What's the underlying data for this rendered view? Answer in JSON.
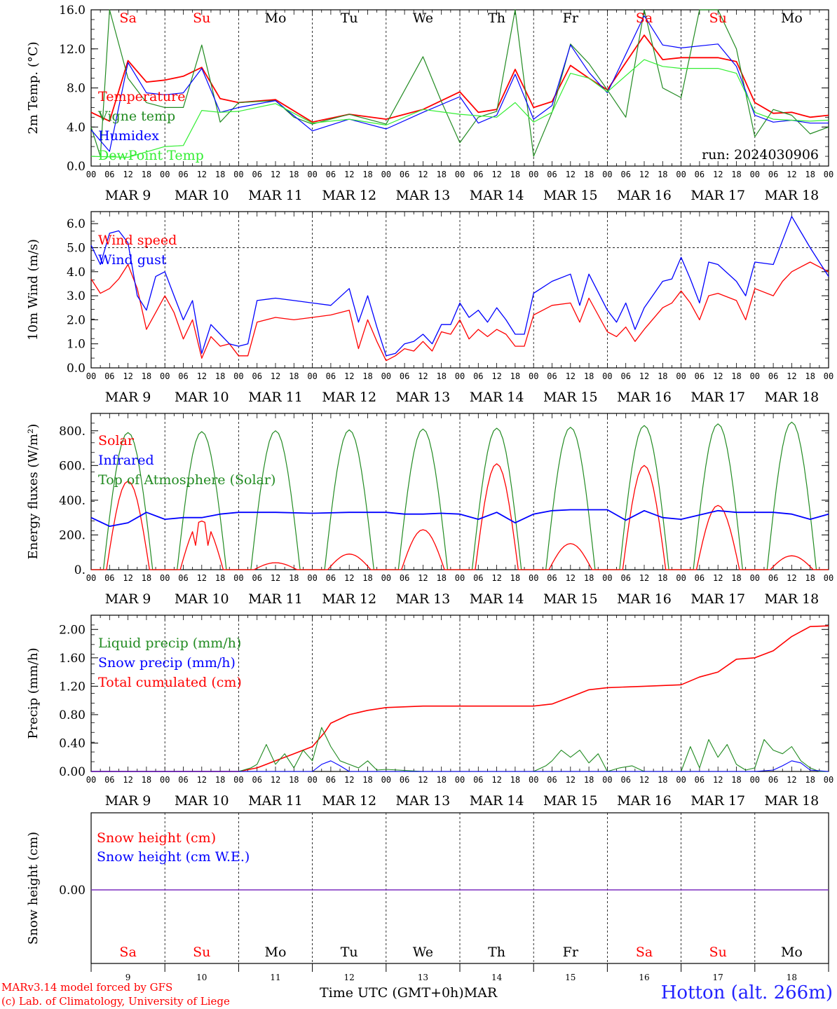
{
  "run_label": "run: 2024030906",
  "day_names": [
    "Sa",
    "Su",
    "Mo",
    "Tu",
    "We",
    "Th",
    "Fr",
    "Sa",
    "Su",
    "Mo"
  ],
  "date_labels": [
    "MAR  9",
    "MAR 10",
    "MAR 11",
    "MAR 12",
    "MAR 13",
    "MAR 14",
    "MAR 15",
    "MAR 16",
    "MAR 17",
    "MAR 18"
  ],
  "day_numbers": [
    "9",
    "10",
    "11",
    "12",
    "13",
    "14",
    "15",
    "16",
    "17",
    "18"
  ],
  "hour_ticks": [
    "00",
    "06",
    "12",
    "18"
  ],
  "weekend_indices": [
    0,
    1,
    7,
    8
  ],
  "x_axis_title": "Time UTC (GMT+0h)",
  "x_axis_month": "MAR",
  "model_credit": "MARv3.14 model forced by GFS",
  "lab_credit": "(c) Lab. of Climatology, University of Liege",
  "station": "Hotton (alt. 266m)",
  "colors": {
    "red": "#ff0000",
    "green": "#228b22",
    "blue": "#0000ff",
    "lightgreen": "#33ee33",
    "purple": "#7b2fbf"
  },
  "chart_data": [
    {
      "type": "line",
      "ylabel": "2m Temp. (°C)",
      "ylim": [
        0,
        16
      ],
      "yticks": [
        "0.0",
        "4.0",
        "8.0",
        "12.0",
        "16.0"
      ],
      "x_unit": "hours since MAR 9 00 UTC",
      "legend": [
        "Temperature",
        "Vigne temp",
        "Humidex",
        "DewPoint Temp"
      ],
      "series": [
        {
          "name": "Temperature",
          "color": "red",
          "x": [
            0,
            6,
            12,
            18,
            24,
            30,
            36,
            42,
            48,
            60,
            72,
            84,
            96,
            108,
            120,
            126,
            132,
            138,
            144,
            150,
            156,
            162,
            168,
            180,
            186,
            192,
            204,
            210,
            216,
            222,
            228,
            234,
            240
          ],
          "values": [
            5.5,
            4.6,
            10.8,
            8.6,
            8.8,
            9.2,
            10.1,
            6.9,
            6.5,
            6.8,
            4.5,
            5.3,
            4.8,
            5.8,
            7.6,
            5.5,
            5.8,
            9.9,
            6.0,
            6.6,
            10.3,
            9.0,
            7.8,
            13.4,
            10.9,
            11.1,
            11.1,
            10.7,
            6.5,
            5.4,
            5.5,
            5.0,
            5.2
          ]
        },
        {
          "name": "Vigne temp",
          "color": "green",
          "x": [
            0,
            3,
            6,
            12,
            18,
            24,
            30,
            36,
            42,
            48,
            60,
            66,
            72,
            84,
            96,
            108,
            114,
            120,
            126,
            132,
            138,
            144,
            150,
            156,
            162,
            168,
            174,
            180,
            186,
            192,
            198,
            204,
            210,
            216,
            222,
            228,
            234,
            240
          ],
          "values": [
            4,
            1,
            16,
            9,
            6.5,
            6,
            6,
            12.4,
            4.5,
            6.5,
            6.7,
            5,
            4.3,
            5.3,
            4.3,
            11.2,
            6.6,
            2.4,
            5,
            5.6,
            16,
            1,
            5.5,
            12.5,
            10.5,
            7.8,
            5,
            16,
            8,
            7,
            16,
            16,
            12,
            3,
            5.8,
            5.2,
            3.3,
            4
          ]
        },
        {
          "name": "Humidex",
          "color": "blue",
          "x": [
            0,
            6,
            12,
            18,
            24,
            30,
            36,
            42,
            48,
            60,
            72,
            84,
            96,
            108,
            120,
            126,
            132,
            138,
            144,
            150,
            156,
            162,
            168,
            180,
            186,
            192,
            204,
            210,
            216,
            222,
            228,
            234,
            240
          ],
          "values": [
            3.7,
            1.5,
            10.6,
            7.5,
            7.3,
            7.5,
            10,
            5.5,
            6,
            6.7,
            3.6,
            4.8,
            3.8,
            5.5,
            7.1,
            4.4,
            5.2,
            9.4,
            4.8,
            6.2,
            12.4,
            9.6,
            7.5,
            15.4,
            12.4,
            12.1,
            12.5,
            10.2,
            5.2,
            4.5,
            4.7,
            4.4,
            4.4
          ]
        },
        {
          "name": "DewPoint Temp",
          "color": "lightgreen",
          "x": [
            0,
            12,
            24,
            30,
            36,
            42,
            48,
            60,
            72,
            84,
            96,
            108,
            120,
            132,
            138,
            144,
            150,
            156,
            162,
            168,
            180,
            186,
            192,
            204,
            210,
            216,
            222,
            228,
            234,
            240
          ],
          "values": [
            1,
            0.9,
            2,
            2.1,
            5.7,
            5.5,
            5.6,
            6.4,
            4.4,
            4.8,
            4.2,
            5.8,
            5.3,
            5,
            6.5,
            4.5,
            5.5,
            9.5,
            9,
            7.6,
            10.9,
            10.2,
            10,
            10,
            9.5,
            5.5,
            4.8,
            4.7,
            4.6,
            4.7
          ]
        }
      ]
    },
    {
      "type": "line",
      "ylabel": "10m Wind (m/s)",
      "ylim": [
        0,
        6.5
      ],
      "yticks": [
        "0.0",
        "1.0",
        "2.0",
        "3.0",
        "4.0",
        "5.0",
        "6.0"
      ],
      "reference_line": 5.0,
      "x_unit": "hours since MAR 9 00 UTC",
      "legend": [
        "Wind speed",
        "Wind gust"
      ],
      "series": [
        {
          "name": "Wind speed",
          "color": "red",
          "x": [
            0,
            3,
            6,
            9,
            12,
            15,
            18,
            21,
            24,
            27,
            30,
            33,
            36,
            39,
            42,
            45,
            48,
            51,
            54,
            60,
            66,
            72,
            78,
            84,
            87,
            90,
            93,
            96,
            99,
            102,
            105,
            108,
            111,
            114,
            117,
            120,
            123,
            126,
            129,
            132,
            135,
            138,
            141,
            144,
            150,
            156,
            159,
            162,
            168,
            171,
            174,
            177,
            180,
            186,
            189,
            192,
            195,
            198,
            201,
            204,
            210,
            213,
            216,
            222,
            225,
            228,
            234,
            240
          ],
          "values": [
            3.7,
            3.1,
            3.3,
            3.7,
            4.3,
            3.3,
            1.6,
            2.3,
            3.0,
            2.3,
            1.2,
            2.0,
            0.4,
            1.3,
            0.9,
            1.0,
            0.5,
            0.5,
            1.9,
            2.1,
            2.0,
            2.1,
            2.2,
            2.4,
            0.8,
            2.0,
            1.1,
            0.3,
            0.5,
            0.8,
            0.7,
            1.1,
            0.7,
            1.5,
            1.4,
            2.0,
            1.2,
            1.6,
            1.3,
            1.6,
            1.4,
            0.9,
            0.9,
            2.2,
            2.6,
            2.7,
            1.9,
            2.9,
            1.5,
            1.3,
            1.7,
            1.1,
            1.6,
            2.5,
            2.7,
            3.2,
            2.7,
            2.0,
            3.0,
            3.1,
            2.8,
            2.0,
            3.3,
            3.0,
            3.6,
            4.0,
            4.4,
            4.0
          ]
        },
        {
          "name": "Wind gust",
          "color": "blue",
          "x": [
            0,
            3,
            6,
            9,
            12,
            15,
            18,
            21,
            24,
            27,
            30,
            33,
            36,
            39,
            42,
            45,
            48,
            51,
            54,
            60,
            66,
            72,
            78,
            84,
            87,
            90,
            93,
            96,
            99,
            102,
            105,
            108,
            111,
            114,
            117,
            120,
            123,
            126,
            129,
            132,
            135,
            138,
            141,
            144,
            150,
            156,
            159,
            162,
            168,
            171,
            174,
            177,
            180,
            186,
            189,
            192,
            195,
            198,
            201,
            204,
            210,
            213,
            216,
            222,
            225,
            228,
            234,
            240
          ],
          "values": [
            5.1,
            4.3,
            5.6,
            5.7,
            5.2,
            3.0,
            2.4,
            3.8,
            4.0,
            3.0,
            2.0,
            2.8,
            0.6,
            1.8,
            1.4,
            1.0,
            0.9,
            1.0,
            2.8,
            2.9,
            2.8,
            2.7,
            2.6,
            3.3,
            1.9,
            3.0,
            1.7,
            0.5,
            0.6,
            1.0,
            1.1,
            1.4,
            1.0,
            1.8,
            1.8,
            2.7,
            2.1,
            2.4,
            1.9,
            2.5,
            2.0,
            1.4,
            1.4,
            3.1,
            3.6,
            3.9,
            2.6,
            3.9,
            2.4,
            1.9,
            2.7,
            1.6,
            2.5,
            3.6,
            3.7,
            4.6,
            3.7,
            2.7,
            4.4,
            4.3,
            3.6,
            3.0,
            4.4,
            4.3,
            5.3,
            6.3,
            5.0,
            3.8
          ]
        }
      ]
    },
    {
      "type": "line",
      "ylabel": "Energy fluxes (W/m²)",
      "ylim": [
        0,
        900
      ],
      "yticks": [
        "0.",
        "200.",
        "400.",
        "600.",
        "800."
      ],
      "x_unit": "hours since MAR 9 00 UTC",
      "legend": [
        "Solar",
        "Infrared",
        "Top of Atmosphere (Solar)"
      ],
      "toa_peaks": [
        790,
        795,
        800,
        805,
        810,
        815,
        820,
        830,
        840,
        850
      ],
      "solar_peaks": [
        510,
        280,
        40,
        90,
        230,
        610,
        150,
        600,
        370,
        80
      ],
      "series": [
        {
          "name": "Infrared",
          "color": "blue",
          "x": [
            0,
            6,
            12,
            18,
            24,
            30,
            36,
            42,
            48,
            60,
            72,
            84,
            96,
            102,
            108,
            114,
            120,
            126,
            132,
            138,
            144,
            150,
            156,
            168,
            174,
            180,
            186,
            192,
            204,
            210,
            216,
            222,
            228,
            234,
            240
          ],
          "values": [
            300,
            250,
            270,
            330,
            290,
            300,
            300,
            320,
            330,
            330,
            325,
            330,
            330,
            320,
            320,
            325,
            320,
            290,
            330,
            270,
            320,
            340,
            345,
            345,
            285,
            340,
            300,
            290,
            340,
            330,
            330,
            330,
            320,
            290,
            320
          ]
        }
      ]
    },
    {
      "type": "line",
      "ylabel": "Precip (mm/h)",
      "ylim": [
        0,
        2.2
      ],
      "yticks": [
        "0.00",
        "0.40",
        "0.80",
        "1.20",
        "1.60",
        "2.00"
      ],
      "x_unit": "hours since MAR 9 00 UTC",
      "legend": [
        "Liquid precip (mm/h)",
        "Snow precip (mm/h)",
        "Total cumulated (cm)"
      ],
      "series": [
        {
          "name": "Total cumulated (cm)",
          "color": "red",
          "x": [
            0,
            48,
            54,
            60,
            66,
            72,
            76,
            78,
            84,
            90,
            96,
            108,
            120,
            132,
            144,
            150,
            156,
            162,
            168,
            180,
            192,
            198,
            204,
            210,
            216,
            222,
            228,
            234,
            240
          ],
          "values": [
            0,
            0,
            0.05,
            0.15,
            0.25,
            0.35,
            0.55,
            0.68,
            0.8,
            0.86,
            0.9,
            0.92,
            0.92,
            0.92,
            0.92,
            0.95,
            1.05,
            1.15,
            1.18,
            1.2,
            1.22,
            1.33,
            1.4,
            1.58,
            1.6,
            1.7,
            1.9,
            2.04,
            2.05
          ]
        },
        {
          "name": "Liquid precip (mm/h)",
          "color": "green",
          "x": [
            0,
            48,
            52,
            54,
            57,
            60,
            63,
            66,
            69,
            72,
            75,
            78,
            81,
            84,
            87,
            90,
            93,
            96,
            100,
            108,
            120,
            144,
            148,
            150,
            153,
            156,
            159,
            162,
            165,
            168,
            172,
            176,
            180,
            192,
            195,
            198,
            201,
            204,
            207,
            210,
            213,
            216,
            219,
            222,
            225,
            228,
            231,
            234,
            237,
            240
          ],
          "values": [
            0,
            0,
            0.05,
            0.1,
            0.38,
            0.1,
            0.25,
            0.05,
            0.3,
            0.15,
            0.62,
            0.35,
            0.15,
            0.1,
            0.05,
            0.15,
            0.02,
            0.03,
            0.02,
            0,
            0,
            0,
            0.08,
            0.15,
            0.3,
            0.2,
            0.3,
            0.12,
            0.25,
            0,
            0.05,
            0.08,
            0,
            0,
            0.35,
            0.05,
            0.45,
            0.2,
            0.38,
            0.1,
            0.02,
            0.05,
            0.45,
            0.3,
            0.25,
            0.35,
            0.15,
            0.05,
            0,
            0
          ]
        },
        {
          "name": "Snow precip (mm/h)",
          "color": "blue",
          "x": [
            0,
            72,
            75,
            78,
            81,
            84,
            216,
            222,
            225,
            228,
            231,
            234,
            240
          ],
          "values": [
            0,
            0,
            0.1,
            0.15,
            0.08,
            0,
            0,
            0.02,
            0.08,
            0.15,
            0.12,
            0.02,
            0
          ]
        }
      ]
    },
    {
      "type": "line",
      "ylabel": "Snow height (cm)",
      "yticks": [
        "0.00"
      ],
      "x_unit": "hours since MAR 9 00 UTC",
      "legend": [
        "Snow height (cm)",
        "Snow height (cm W.E.)"
      ],
      "series": [
        {
          "name": "Snow height (cm)",
          "color": "purple",
          "x": [
            0,
            240
          ],
          "values": [
            0,
            0
          ]
        }
      ]
    }
  ]
}
